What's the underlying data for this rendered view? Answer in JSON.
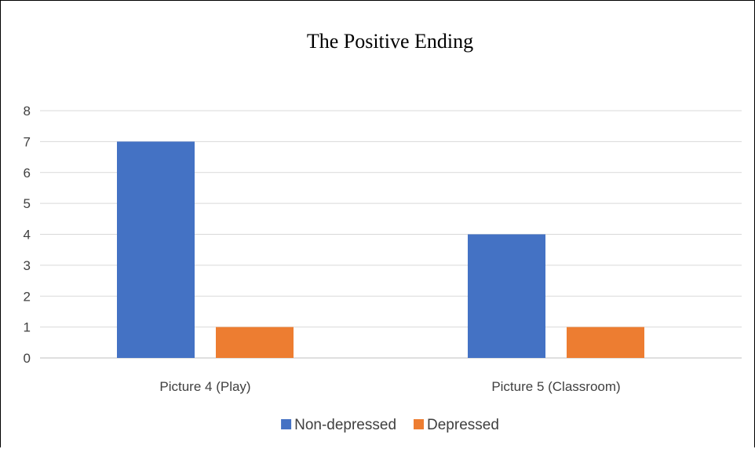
{
  "chart_data": {
    "type": "bar",
    "title": "The Positive Ending",
    "categories": [
      "Picture 4 (Play)",
      "Picture 5 (Classroom)"
    ],
    "series": [
      {
        "name": "Non-depressed",
        "values": [
          7,
          4
        ],
        "color": "#4472c4"
      },
      {
        "name": "Depressed",
        "values": [
          1,
          1
        ],
        "color": "#ed7d31"
      }
    ],
    "ylim": [
      0,
      8
    ],
    "yticks": [
      0,
      1,
      2,
      3,
      4,
      5,
      6,
      7,
      8
    ],
    "grid": true,
    "legend": "bottom"
  }
}
